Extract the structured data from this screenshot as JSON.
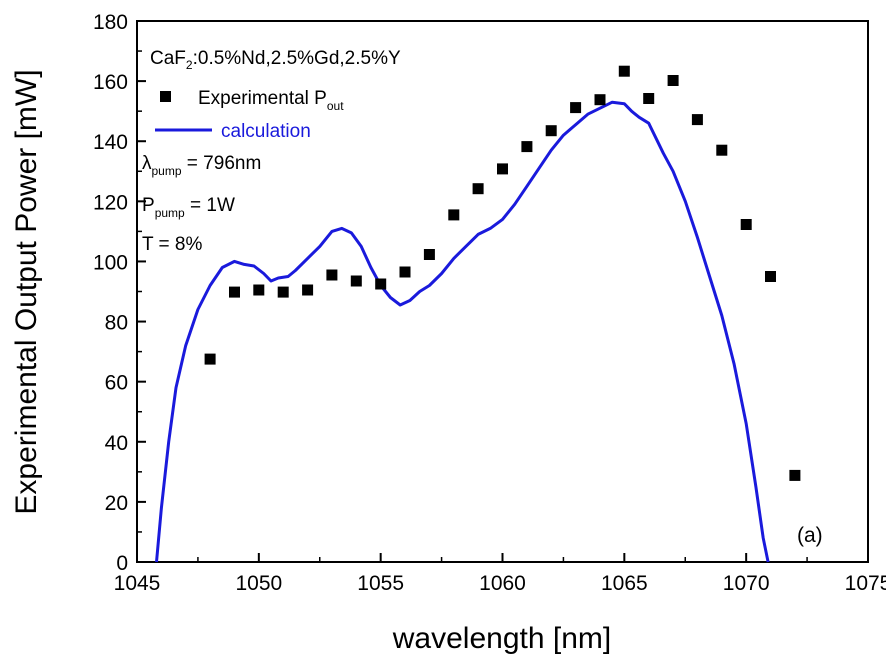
{
  "chart_data": {
    "type": "scatter",
    "xlabel": "wavelength [nm]",
    "ylabel": "Experimental Output Power [mW]",
    "xlim": [
      1045,
      1075
    ],
    "ylim": [
      0,
      180
    ],
    "x_ticks": [
      1045,
      1050,
      1055,
      1060,
      1065,
      1070,
      1075
    ],
    "y_ticks": [
      0,
      20,
      40,
      60,
      80,
      100,
      120,
      140,
      160,
      180
    ],
    "x_minor_step": 2.5,
    "y_minor_step": 10,
    "grid": false,
    "legend_placement": "top-left",
    "annotations": {
      "crystal": {
        "main": "CaF",
        "sub": "2",
        "rest": ":0.5%Nd,2.5%Gd,2.5%Y"
      },
      "lambda_pump": {
        "symbol": "λ",
        "sub": "pump",
        "rest": " = 796nm"
      },
      "p_pump": {
        "symbol": "P",
        "sub": "pump",
        "rest": " = 1W"
      },
      "transmission": "T = 8%",
      "panel_label": "(a)"
    },
    "series": [
      {
        "name_main": "Experimental P",
        "name_sub": "out",
        "kind": "scatter",
        "marker": "square",
        "color": "#000000",
        "points": [
          [
            1048,
            67.5
          ],
          [
            1049,
            89.8
          ],
          [
            1050,
            90.5
          ],
          [
            1051,
            89.8
          ],
          [
            1052,
            90.5
          ],
          [
            1053,
            95.5
          ],
          [
            1054,
            93.5
          ],
          [
            1055,
            92.5
          ],
          [
            1056,
            96.5
          ],
          [
            1057,
            102.3
          ],
          [
            1058,
            115.5
          ],
          [
            1059,
            124.2
          ],
          [
            1060,
            130.8
          ],
          [
            1061,
            138.2
          ],
          [
            1062,
            143.5
          ],
          [
            1063,
            151.2
          ],
          [
            1064,
            153.8
          ],
          [
            1065,
            163.3
          ],
          [
            1066,
            154.2
          ],
          [
            1067,
            160.2
          ],
          [
            1068,
            147.2
          ],
          [
            1069,
            137.0
          ],
          [
            1070,
            112.3
          ],
          [
            1071,
            95.0
          ],
          [
            1072,
            28.8
          ]
        ]
      },
      {
        "name": "calculation",
        "kind": "line",
        "color": "#1a1adc",
        "points": [
          [
            1045.8,
            0
          ],
          [
            1046.0,
            18
          ],
          [
            1046.3,
            40
          ],
          [
            1046.6,
            58
          ],
          [
            1047.0,
            72
          ],
          [
            1047.5,
            84
          ],
          [
            1048.0,
            92
          ],
          [
            1048.5,
            98
          ],
          [
            1049.0,
            100
          ],
          [
            1049.4,
            99
          ],
          [
            1049.8,
            98.5
          ],
          [
            1050.2,
            96
          ],
          [
            1050.5,
            93.5
          ],
          [
            1050.8,
            94.5
          ],
          [
            1051.2,
            95
          ],
          [
            1051.5,
            97
          ],
          [
            1052.0,
            101
          ],
          [
            1052.5,
            105
          ],
          [
            1053.0,
            110
          ],
          [
            1053.4,
            111
          ],
          [
            1053.8,
            109.5
          ],
          [
            1054.2,
            105
          ],
          [
            1054.6,
            98
          ],
          [
            1055.0,
            92
          ],
          [
            1055.4,
            88
          ],
          [
            1055.8,
            85.5
          ],
          [
            1056.2,
            87
          ],
          [
            1056.6,
            90
          ],
          [
            1057.0,
            92
          ],
          [
            1057.5,
            96
          ],
          [
            1058.0,
            101
          ],
          [
            1058.5,
            105
          ],
          [
            1059.0,
            109
          ],
          [
            1059.5,
            111
          ],
          [
            1060.0,
            114
          ],
          [
            1060.5,
            119
          ],
          [
            1061.0,
            125
          ],
          [
            1061.5,
            131
          ],
          [
            1062.0,
            137
          ],
          [
            1062.5,
            142
          ],
          [
            1063.0,
            145.5
          ],
          [
            1063.5,
            149
          ],
          [
            1064.0,
            151
          ],
          [
            1064.5,
            153
          ],
          [
            1065.0,
            152.5
          ],
          [
            1065.3,
            150
          ],
          [
            1065.6,
            148
          ],
          [
            1066.0,
            146
          ],
          [
            1066.3,
            141
          ],
          [
            1066.6,
            136
          ],
          [
            1067.0,
            130
          ],
          [
            1067.5,
            120
          ],
          [
            1068.0,
            108
          ],
          [
            1068.5,
            95
          ],
          [
            1069.0,
            82
          ],
          [
            1069.5,
            66
          ],
          [
            1070.0,
            46
          ],
          [
            1070.4,
            25
          ],
          [
            1070.7,
            8
          ],
          [
            1070.9,
            0
          ]
        ]
      }
    ]
  }
}
